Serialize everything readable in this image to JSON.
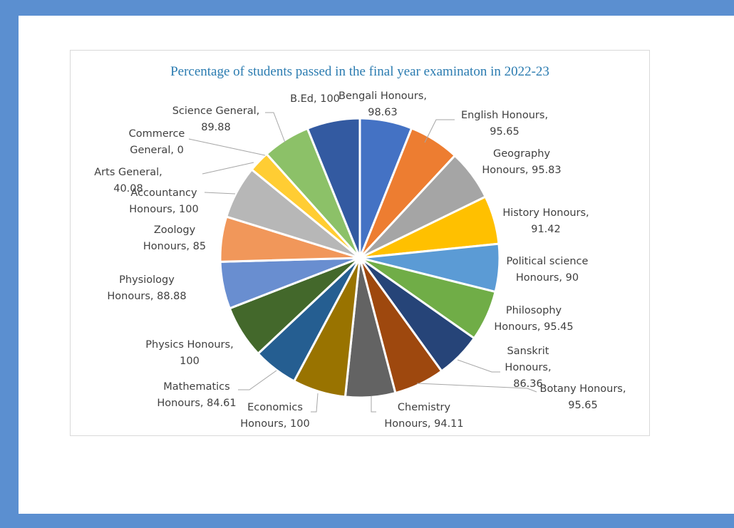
{
  "chart_data": {
    "type": "pie",
    "title": "Percentage of students passed in the final year examinaton in 2022-23",
    "slices": [
      {
        "name": "Bengali Honours",
        "value": 98.63,
        "label": [
          "Bengali Honours,",
          "98.63"
        ],
        "color": "#4472c4"
      },
      {
        "name": "English Honours",
        "value": 95.65,
        "label": [
          "English Honours,",
          "95.65"
        ],
        "color": "#ed7d31"
      },
      {
        "name": "Geography Honours",
        "value": 95.83,
        "label": [
          "Geography",
          "Honours, 95.83"
        ],
        "color": "#a5a5a5"
      },
      {
        "name": "History Honours",
        "value": 91.42,
        "label": [
          "History Honours,",
          "91.42"
        ],
        "color": "#ffc000"
      },
      {
        "name": "Political science Honours",
        "value": 90,
        "label": [
          "Political science",
          "Honours, 90"
        ],
        "color": "#5b9bd5"
      },
      {
        "name": "Philosophy Honours",
        "value": 95.45,
        "label": [
          "Philosophy",
          "Honours, 95.45"
        ],
        "color": "#70ad47"
      },
      {
        "name": "Sanskrit Honours",
        "value": 86.36,
        "label": [
          "Sanskrit",
          "Honours,",
          "86.36"
        ],
        "color": "#264478"
      },
      {
        "name": "Botany Honours",
        "value": 95.65,
        "label": [
          "Botany Honours,",
          "95.65"
        ],
        "color": "#9e480e"
      },
      {
        "name": "Chemistry Honours",
        "value": 94.11,
        "label": [
          "Chemistry",
          "Honours, 94.11"
        ],
        "color": "#636363"
      },
      {
        "name": "Economics Honours",
        "value": 100,
        "label": [
          "Economics",
          "Honours, 100"
        ],
        "color": "#997300"
      },
      {
        "name": "Mathematics Honours",
        "value": 84.61,
        "label": [
          "Mathematics",
          "Honours, 84.61"
        ],
        "color": "#255e91"
      },
      {
        "name": "Physics Honours",
        "value": 100,
        "label": [
          "Physics Honours,",
          "100"
        ],
        "color": "#43682b"
      },
      {
        "name": "Physiology Honours",
        "value": 88.88,
        "label": [
          "Physiology",
          "Honours, 88.88"
        ],
        "color": "#698ed0"
      },
      {
        "name": "Zoology Honours",
        "value": 85,
        "label": [
          "Zoology",
          "Honours, 85"
        ],
        "color": "#f1975a"
      },
      {
        "name": "Accountancy Honours",
        "value": 100,
        "label": [
          "Accountancy",
          "Honours, 100"
        ],
        "color": "#b7b7b7"
      },
      {
        "name": "Arts General",
        "value": 40.08,
        "label": [
          "Arts General,",
          "40.08"
        ],
        "color": "#ffcd33"
      },
      {
        "name": "Commerce General",
        "value": 0,
        "label": [
          "Commerce",
          "General, 0"
        ],
        "color": "#5b9bd5"
      },
      {
        "name": "Science General",
        "value": 89.88,
        "label": [
          "Science General,",
          "89.88"
        ],
        "color": "#8cc168"
      },
      {
        "name": "B.Ed",
        "value": 100,
        "label": [
          "B.Ed, 100"
        ],
        "color": "#335aa1"
      }
    ]
  }
}
